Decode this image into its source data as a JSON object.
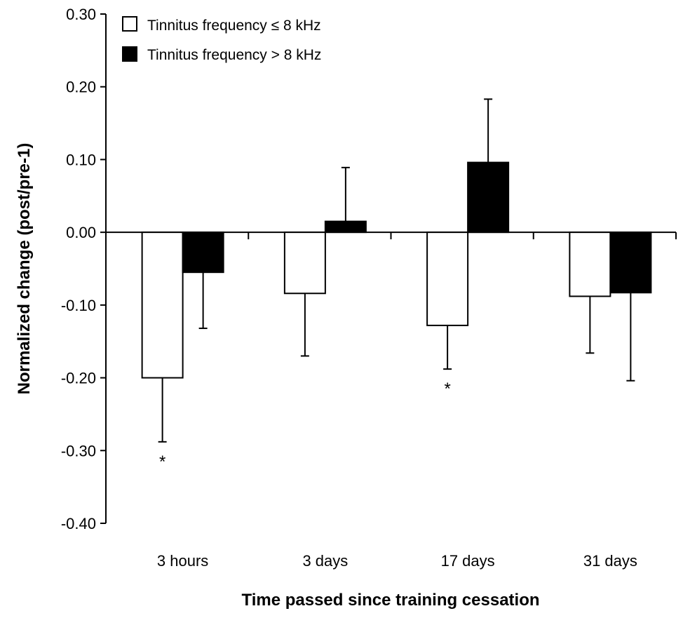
{
  "chart_data": {
    "type": "bar",
    "title": "",
    "xlabel": "Time passed since training cessation",
    "ylabel": "Normalized change (post/pre-1)",
    "ylim": [
      -0.4,
      0.3
    ],
    "yticks": [
      0.3,
      0.2,
      0.1,
      0.0,
      -0.1,
      -0.2,
      -0.3,
      -0.4
    ],
    "ytick_labels": [
      "0.30",
      "0.20",
      "0.10",
      "0.00",
      "-0.10",
      "-0.20",
      "-0.30",
      "-0.40"
    ],
    "categories": [
      "3 hours",
      "3 days",
      "17 days",
      "31 days"
    ],
    "grid": false,
    "legend_position": "top-left",
    "series": [
      {
        "name": "Tinnitus frequency ≤ 8 kHz",
        "fill": "#ffffff",
        "values": [
          -0.2,
          -0.084,
          -0.128,
          -0.088
        ],
        "errors": [
          0.088,
          0.086,
          0.06,
          0.078
        ],
        "significance": [
          "*",
          "",
          "*",
          ""
        ]
      },
      {
        "name": "Tinnitus frequency > 8 kHz",
        "fill": "#000000",
        "values": [
          -0.055,
          0.015,
          0.096,
          -0.083
        ],
        "errors": [
          0.077,
          0.074,
          0.087,
          0.121
        ],
        "significance": [
          "",
          "",
          "",
          ""
        ]
      }
    ]
  }
}
